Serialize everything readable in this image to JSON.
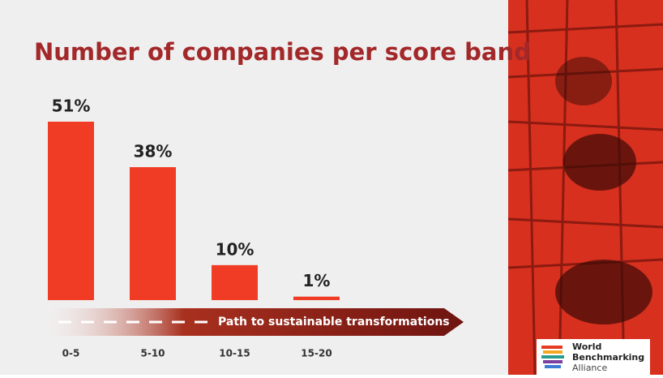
{
  "chart_data": {
    "type": "bar",
    "title": "Number of companies per score band",
    "categories": [
      "0-5",
      "5-10",
      "10-15",
      "15-20"
    ],
    "values": [
      51,
      38,
      10,
      1
    ],
    "value_labels": [
      "51%",
      "38%",
      "10%",
      "1%"
    ],
    "color": "#f03c24",
    "annotation": "Path to sustainable transformations"
  },
  "branding": {
    "lines": [
      "World",
      "Benchmarking",
      "Alliance"
    ]
  }
}
